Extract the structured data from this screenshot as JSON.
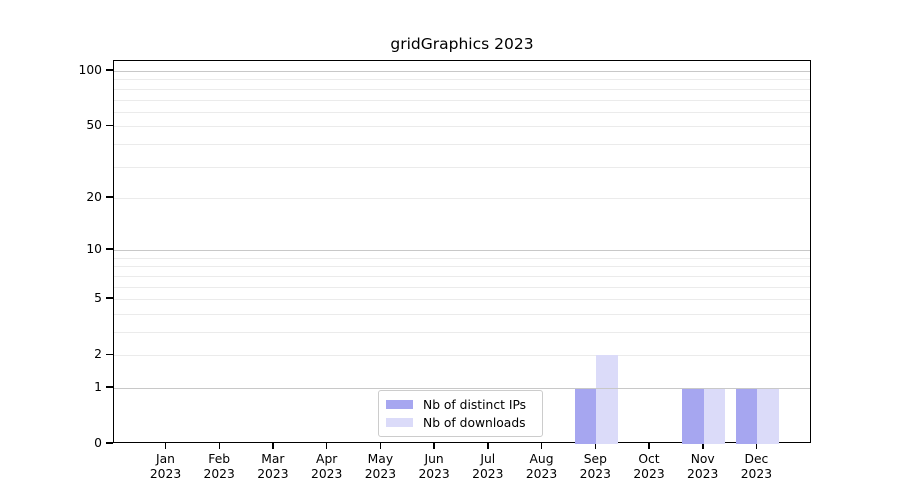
{
  "chart_data": {
    "type": "bar",
    "title": "gridGraphics 2023",
    "categories": [
      "Jan 2023",
      "Feb 2023",
      "Mar 2023",
      "Apr 2023",
      "May 2023",
      "Jun 2023",
      "Jul 2023",
      "Aug 2023",
      "Sep 2023",
      "Oct 2023",
      "Nov 2023",
      "Dec 2023"
    ],
    "series": [
      {
        "name": "Nb of distinct IPs",
        "color": "#a6a6f0",
        "values": [
          0,
          0,
          0,
          0,
          0,
          0,
          0,
          0,
          1,
          0,
          1,
          1
        ]
      },
      {
        "name": "Nb of downloads",
        "color": "#dbdbf9",
        "values": [
          0,
          0,
          0,
          0,
          0,
          0,
          0,
          0,
          2,
          0,
          1,
          1
        ]
      }
    ],
    "xlabel": "",
    "ylabel": "",
    "yscale": "log1p",
    "ylim": [
      0,
      113
    ],
    "yticks": [
      0,
      1,
      2,
      5,
      10,
      20,
      50,
      100
    ],
    "grid_major": [
      1,
      10,
      100
    ],
    "grid_minor": [
      2,
      3,
      4,
      5,
      6,
      7,
      8,
      9,
      20,
      30,
      40,
      50,
      60,
      70,
      80,
      90
    ],
    "grid": "horizontal",
    "legend_position": "lower center"
  },
  "colors": {
    "bar_distinct_ips": "#a6a6f0",
    "bar_downloads": "#dbdbf9",
    "grid_major": "#c8c8c8",
    "grid_minor": "#ebebeb",
    "axis": "#000000",
    "legend_border": "#cccccc"
  }
}
